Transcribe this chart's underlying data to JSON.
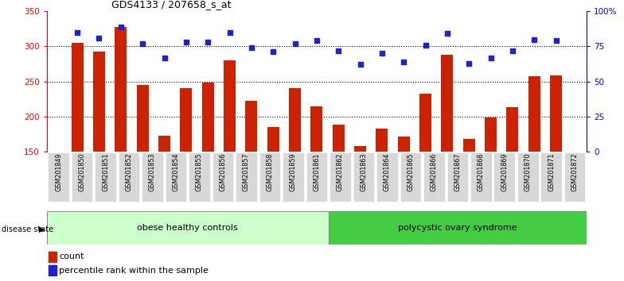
{
  "title": "GDS4133 / 207658_s_at",
  "samples": [
    "GSM201849",
    "GSM201850",
    "GSM201851",
    "GSM201852",
    "GSM201853",
    "GSM201854",
    "GSM201855",
    "GSM201856",
    "GSM201857",
    "GSM201858",
    "GSM201859",
    "GSM201861",
    "GSM201862",
    "GSM201863",
    "GSM201864",
    "GSM201865",
    "GSM201866",
    "GSM201867",
    "GSM201868",
    "GSM201869",
    "GSM201870",
    "GSM201871",
    "GSM201872"
  ],
  "counts": [
    305,
    293,
    328,
    245,
    173,
    241,
    248,
    280,
    223,
    185,
    241,
    215,
    189,
    158,
    183,
    172,
    233,
    288,
    168,
    199,
    213,
    258,
    259
  ],
  "percentile_pcts": [
    85,
    81,
    89,
    77,
    67,
    78,
    78,
    85,
    74,
    71,
    77,
    79,
    72,
    62,
    70,
    64,
    76,
    84,
    63,
    67,
    72,
    80,
    79
  ],
  "group1_label": "obese healthy controls",
  "group2_label": "polycystic ovary syndrome",
  "group1_count": 12,
  "group2_count": 11,
  "bar_color": "#cc2200",
  "dot_color": "#2222cc",
  "group1_bg": "#ccffcc",
  "group2_bg": "#44cc44",
  "ylim_left": [
    150,
    350
  ],
  "yticks_left": [
    150,
    200,
    250,
    300,
    350
  ],
  "ylim_right": [
    0,
    100
  ],
  "yticks_right": [
    0,
    25,
    50,
    75,
    100
  ],
  "yticklabels_right": [
    "0",
    "25",
    "50",
    "75",
    "100%"
  ],
  "hgrid_vals": [
    200,
    250,
    300
  ],
  "disease_state_label": "disease state",
  "legend_count_label": "count",
  "legend_pct_label": "percentile rank within the sample",
  "left_axis_color": "red",
  "right_axis_color": "blue",
  "xtick_bg": "#d8d8d8"
}
